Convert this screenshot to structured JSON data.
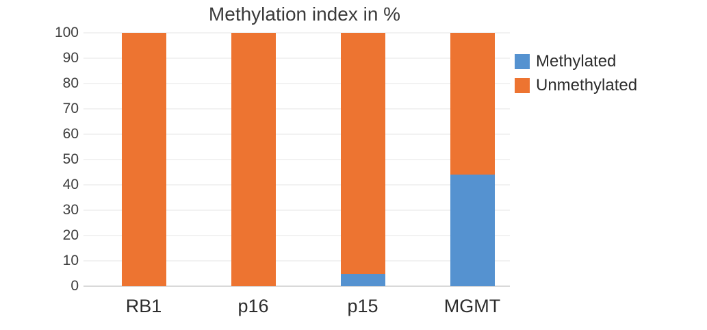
{
  "chart_data": {
    "type": "bar",
    "stacked": true,
    "title": "Methylation index in %",
    "categories": [
      "RB1",
      "p16",
      "p15",
      "MGMT"
    ],
    "series": [
      {
        "name": "Methylated",
        "color": "#5592D0",
        "values": [
          0,
          0,
          5,
          44
        ]
      },
      {
        "name": "Unmethylated",
        "color": "#ED7431",
        "values": [
          100,
          100,
          95,
          56
        ]
      }
    ],
    "ylim": [
      0,
      100
    ],
    "ytick_step": 10,
    "ytick_labels": [
      "0",
      "10",
      "20",
      "30",
      "40",
      "50",
      "60",
      "70",
      "80",
      "90",
      "100"
    ],
    "xlabel": "",
    "ylabel": "",
    "grid": true,
    "legend_position": "right",
    "colors": {
      "background": "#ffffff",
      "gridline": "#f2f2f2",
      "baseline": "#d9d9d9",
      "text": "#3a3a3a"
    }
  }
}
